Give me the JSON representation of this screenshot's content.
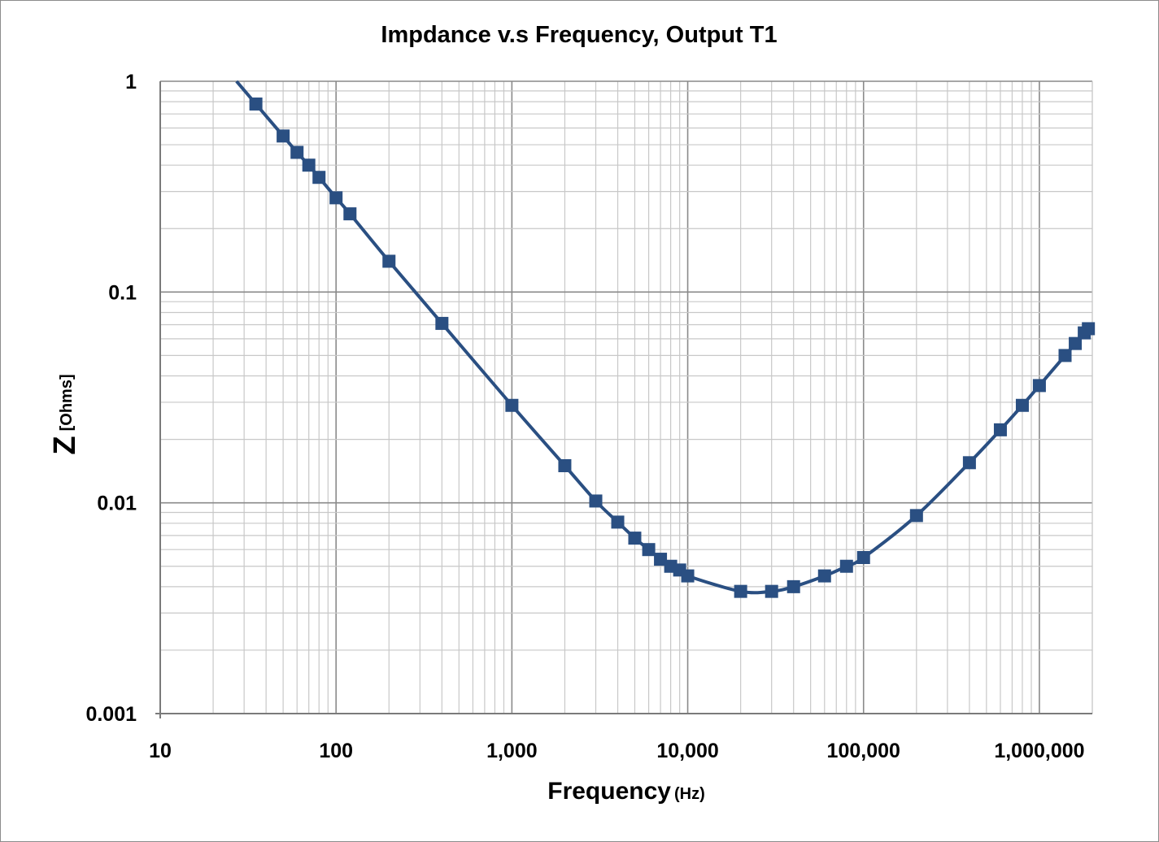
{
  "chart_data": {
    "type": "line",
    "title": "Impdance v.s Frequency, Output T1",
    "xlabel": "Frequency",
    "xlabel_unit": "(Hz)",
    "ylabel": "Z",
    "ylabel_unit": "[Ohms]",
    "xscale": "log",
    "yscale": "log",
    "xlim": [
      10,
      2000000
    ],
    "ylim": [
      0.001,
      1
    ],
    "grid": true,
    "legend": "none",
    "x_tick_labels": [
      "10",
      "100",
      "1,000",
      "10,000",
      "100,000",
      "1,000,000"
    ],
    "y_tick_labels": [
      "0.001",
      "0.01",
      "0.1",
      "1"
    ],
    "line_color": "#2a4f82",
    "series": [
      {
        "x": [
          35,
          50,
          60,
          70,
          80,
          100,
          120,
          200,
          400,
          1000,
          2000,
          3000,
          4000,
          5000,
          6000,
          7000,
          8000,
          9000,
          10000,
          20000,
          30000,
          40000,
          60000,
          80000,
          100000,
          200000,
          400000,
          600000,
          800000,
          1000000,
          1400000,
          1600000,
          1800000,
          1900000
        ],
        "y": [
          0.78,
          0.55,
          0.46,
          0.4,
          0.35,
          0.28,
          0.235,
          0.14,
          0.071,
          0.029,
          0.015,
          0.0102,
          0.0081,
          0.0068,
          0.006,
          0.0054,
          0.005,
          0.0048,
          0.0045,
          0.0038,
          0.0038,
          0.004,
          0.0045,
          0.005,
          0.0055,
          0.0087,
          0.0155,
          0.0222,
          0.029,
          0.036,
          0.05,
          0.057,
          0.064,
          0.067
        ]
      }
    ]
  }
}
